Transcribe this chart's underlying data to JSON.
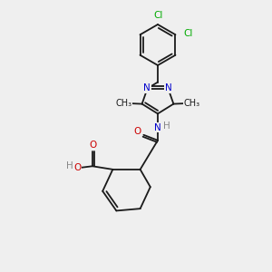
{
  "background_color": "#efefef",
  "bond_color": "#1a1a1a",
  "nitrogen_color": "#0000cc",
  "oxygen_color": "#cc0000",
  "chlorine_color": "#00aa00",
  "hydrogen_color": "#888888",
  "font_size": 7.5,
  "figsize": [
    3.0,
    3.0
  ],
  "dpi": 100,
  "xlim": [
    0,
    10
  ],
  "ylim": [
    0,
    10
  ]
}
